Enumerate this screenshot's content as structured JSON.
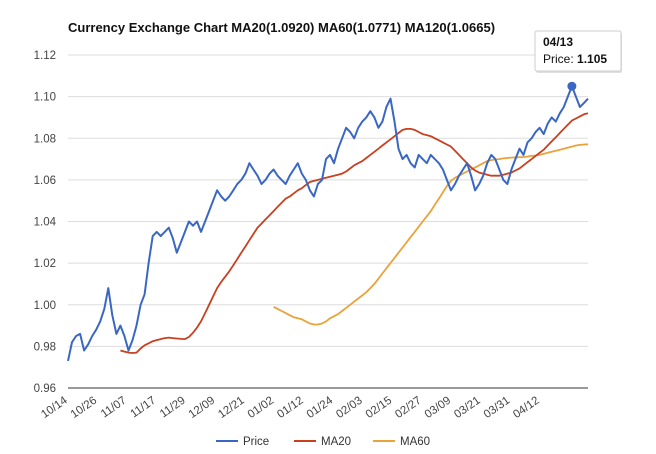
{
  "chart_data": {
    "type": "line",
    "title": "Currency Exchange Chart MA20(1.0920) MA60(1.0771) MA120(1.0665)",
    "xlabel": "",
    "ylabel": "",
    "ylim": [
      0.96,
      1.12
    ],
    "y_ticks": [
      "0.96",
      "0.98",
      "1.00",
      "1.02",
      "1.04",
      "1.06",
      "1.08",
      "1.10",
      "1.12"
    ],
    "x_ticks": [
      "10/14",
      "10/26",
      "11/07",
      "11/17",
      "11/29",
      "12/09",
      "12/21",
      "01/02",
      "01/12",
      "01/24",
      "02/03",
      "02/15",
      "02/27",
      "03/09",
      "03/21",
      "03/31",
      "04/12"
    ],
    "x_count": 130,
    "series": [
      {
        "name": "Price",
        "color": "#3a67c4",
        "values": [
          0.973,
          0.982,
          0.985,
          0.986,
          0.978,
          0.981,
          0.985,
          0.988,
          0.992,
          0.998,
          1.008,
          0.995,
          0.986,
          0.99,
          0.985,
          0.978,
          0.983,
          0.99,
          1.0,
          1.005,
          1.02,
          1.033,
          1.035,
          1.033,
          1.035,
          1.037,
          1.032,
          1.025,
          1.03,
          1.035,
          1.04,
          1.038,
          1.04,
          1.035,
          1.04,
          1.045,
          1.05,
          1.055,
          1.052,
          1.05,
          1.052,
          1.055,
          1.058,
          1.06,
          1.063,
          1.068,
          1.065,
          1.062,
          1.058,
          1.06,
          1.063,
          1.065,
          1.062,
          1.06,
          1.058,
          1.062,
          1.065,
          1.068,
          1.063,
          1.06,
          1.055,
          1.052,
          1.058,
          1.06,
          1.07,
          1.072,
          1.068,
          1.075,
          1.08,
          1.085,
          1.083,
          1.08,
          1.085,
          1.088,
          1.09,
          1.093,
          1.09,
          1.085,
          1.088,
          1.095,
          1.099,
          1.088,
          1.075,
          1.07,
          1.072,
          1.068,
          1.066,
          1.072,
          1.07,
          1.068,
          1.072,
          1.07,
          1.068,
          1.065,
          1.06,
          1.055,
          1.058,
          1.062,
          1.065,
          1.068,
          1.062,
          1.055,
          1.058,
          1.062,
          1.068,
          1.072,
          1.07,
          1.065,
          1.06,
          1.058,
          1.065,
          1.07,
          1.075,
          1.072,
          1.078,
          1.08,
          1.083,
          1.085,
          1.082,
          1.087,
          1.09,
          1.088,
          1.092,
          1.095,
          1.1,
          1.105,
          1.1,
          1.095,
          1.097,
          1.099
        ]
      },
      {
        "name": "MA20",
        "color": "#c8401f",
        "values": [
          0.978,
          0.9775,
          0.977,
          0.9768,
          0.977,
          0.979,
          0.9805,
          0.9815,
          0.9825,
          0.983,
          0.9835,
          0.984,
          0.9842,
          0.984,
          0.9838,
          0.9836,
          0.9835,
          0.9845,
          0.9865,
          0.989,
          0.992,
          0.996,
          1.0,
          1.004,
          1.008,
          1.011,
          1.0135,
          1.016,
          1.019,
          1.022,
          1.025,
          1.028,
          1.031,
          1.034,
          1.037,
          1.039,
          1.041,
          1.043,
          1.045,
          1.047,
          1.049,
          1.051,
          1.052,
          1.0535,
          1.055,
          1.056,
          1.0575,
          1.059,
          1.0595,
          1.06,
          1.0605,
          1.061,
          1.0615,
          1.062,
          1.0625,
          1.063,
          1.064,
          1.0655,
          1.067,
          1.068,
          1.069,
          1.0705,
          1.072,
          1.0735,
          1.075,
          1.0765,
          1.078,
          1.0795,
          1.081,
          1.0825,
          1.084,
          1.0845,
          1.0845,
          1.084,
          1.083,
          1.082,
          1.0815,
          1.081,
          1.08,
          1.079,
          1.078,
          1.077,
          1.076,
          1.074,
          1.072,
          1.07,
          1.068,
          1.066,
          1.0645,
          1.0635,
          1.063,
          1.0625,
          1.062,
          1.062,
          1.062,
          1.0625,
          1.063,
          1.0635,
          1.0645,
          1.0655,
          1.067,
          1.0685,
          1.07,
          1.0715,
          1.073,
          1.0745,
          1.0765,
          1.0785,
          1.0805,
          1.0825,
          1.0845,
          1.0865,
          1.0885,
          1.0895,
          1.0905,
          1.0915,
          1.092
        ]
      },
      {
        "name": "MA60",
        "color": "#eaa23b",
        "values": [
          0.999,
          0.998,
          0.997,
          0.996,
          0.995,
          0.994,
          0.9935,
          0.993,
          0.992,
          0.991,
          0.9905,
          0.9905,
          0.991,
          0.992,
          0.9935,
          0.9945,
          0.9955,
          0.997,
          0.9985,
          1.0,
          1.0015,
          1.003,
          1.0045,
          1.006,
          1.008,
          1.01,
          1.0125,
          1.015,
          1.0175,
          1.02,
          1.0225,
          1.025,
          1.0275,
          1.03,
          1.0325,
          1.035,
          1.0375,
          1.04,
          1.0425,
          1.045,
          1.048,
          1.051,
          1.054,
          1.057,
          1.0595,
          1.061,
          1.062,
          1.063,
          1.064,
          1.065,
          1.066,
          1.067,
          1.068,
          1.069,
          1.0695,
          1.0698,
          1.07,
          1.0703,
          1.0705,
          1.0707,
          1.0708,
          1.0709,
          1.071,
          1.0712,
          1.0715,
          1.0717,
          1.072,
          1.0725,
          1.073,
          1.0735,
          1.074,
          1.0745,
          1.075,
          1.0755,
          1.076,
          1.0765,
          1.0768,
          1.077,
          1.0771
        ]
      }
    ],
    "tooltip": {
      "date": "04/13",
      "label": "Price:",
      "value": "1.105",
      "x_index": 125,
      "y": 1.105
    },
    "legend": [
      "Price",
      "MA20",
      "MA60"
    ],
    "legend_position": "bottom",
    "grid": true
  }
}
